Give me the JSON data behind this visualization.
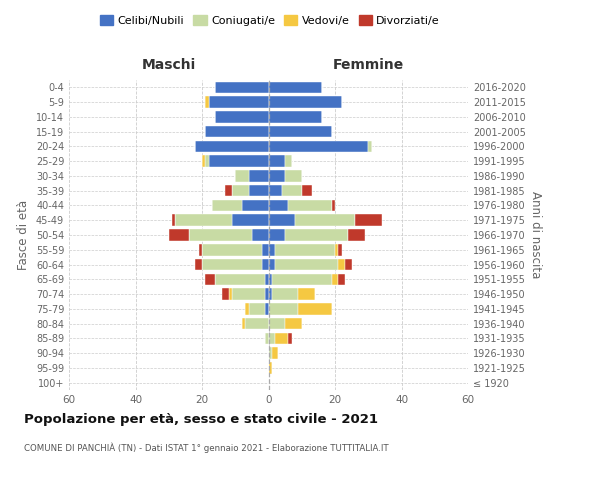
{
  "age_groups": [
    "100+",
    "95-99",
    "90-94",
    "85-89",
    "80-84",
    "75-79",
    "70-74",
    "65-69",
    "60-64",
    "55-59",
    "50-54",
    "45-49",
    "40-44",
    "35-39",
    "30-34",
    "25-29",
    "20-24",
    "15-19",
    "10-14",
    "5-9",
    "0-4"
  ],
  "birth_years": [
    "≤ 1920",
    "1921-1925",
    "1926-1930",
    "1931-1935",
    "1936-1940",
    "1941-1945",
    "1946-1950",
    "1951-1955",
    "1956-1960",
    "1961-1965",
    "1966-1970",
    "1971-1975",
    "1976-1980",
    "1981-1985",
    "1986-1990",
    "1991-1995",
    "1996-2000",
    "2001-2005",
    "2006-2010",
    "2011-2015",
    "2016-2020"
  ],
  "maschi": {
    "celibi": [
      0,
      0,
      0,
      0,
      0,
      1,
      1,
      1,
      2,
      2,
      5,
      11,
      8,
      6,
      6,
      18,
      22,
      19,
      16,
      18,
      16
    ],
    "coniugati": [
      0,
      0,
      0,
      1,
      7,
      5,
      10,
      15,
      18,
      18,
      19,
      17,
      9,
      5,
      4,
      1,
      0,
      0,
      0,
      0,
      0
    ],
    "vedovi": [
      0,
      0,
      0,
      0,
      1,
      1,
      1,
      0,
      0,
      0,
      0,
      0,
      0,
      0,
      0,
      1,
      0,
      0,
      0,
      1,
      0
    ],
    "divorziati": [
      0,
      0,
      0,
      0,
      0,
      0,
      2,
      3,
      2,
      1,
      6,
      1,
      0,
      2,
      0,
      0,
      0,
      0,
      0,
      0,
      0
    ]
  },
  "femmine": {
    "nubili": [
      0,
      0,
      0,
      0,
      0,
      0,
      1,
      1,
      2,
      2,
      5,
      8,
      6,
      4,
      5,
      5,
      30,
      19,
      16,
      22,
      16
    ],
    "coniugate": [
      0,
      0,
      1,
      2,
      5,
      9,
      8,
      18,
      19,
      18,
      19,
      18,
      13,
      6,
      5,
      2,
      1,
      0,
      0,
      0,
      0
    ],
    "vedove": [
      0,
      1,
      2,
      4,
      5,
      10,
      5,
      2,
      2,
      1,
      0,
      0,
      0,
      0,
      0,
      0,
      0,
      0,
      0,
      0,
      0
    ],
    "divorziate": [
      0,
      0,
      0,
      1,
      0,
      0,
      0,
      2,
      2,
      1,
      5,
      8,
      1,
      3,
      0,
      0,
      0,
      0,
      0,
      0,
      0
    ]
  },
  "color_celibi": "#4472c4",
  "color_coniugati": "#c8dba4",
  "color_vedovi": "#f5c842",
  "color_divorziati": "#c0392b",
  "xlim": 60,
  "title": "Popolazione per età, sesso e stato civile - 2021",
  "subtitle": "COMUNE DI PANCHIÀ (TN) - Dati ISTAT 1° gennaio 2021 - Elaborazione TUTTITALIA.IT",
  "legend_labels": [
    "Celibi/Nubili",
    "Coniugati/e",
    "Vedovi/e",
    "Divorziati/e"
  ],
  "label_maschi": "Maschi",
  "label_femmine": "Femmine",
  "ylabel_left": "Fasce di età",
  "ylabel_right": "Anni di nascita"
}
